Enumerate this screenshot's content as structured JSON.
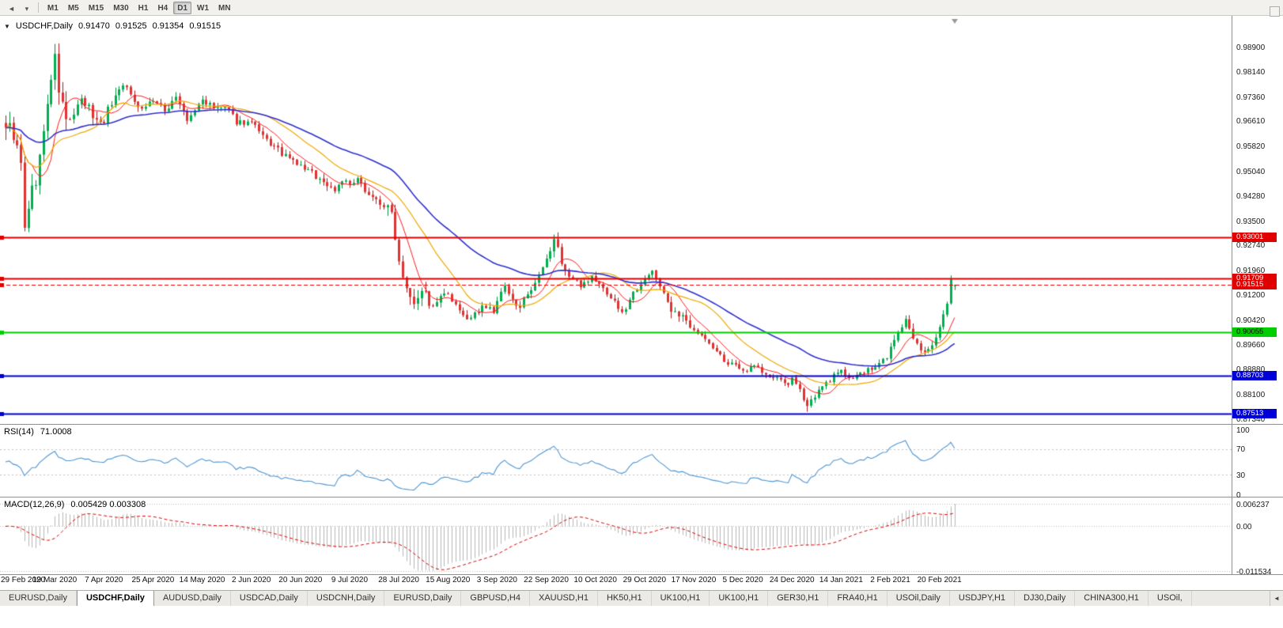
{
  "toolbar": {
    "timeframes": [
      "M1",
      "M5",
      "M15",
      "M30",
      "H1",
      "H4",
      "D1",
      "W1",
      "MN"
    ],
    "active_timeframe": "D1",
    "icons": [
      {
        "name": "scroll-left-icon",
        "glyph": "◄"
      },
      {
        "name": "chart-dropdown-icon",
        "glyph": "▾"
      }
    ]
  },
  "chart": {
    "collapse_icon": "▼",
    "symbol": "USDCHF,Daily",
    "open": "0.91470",
    "high": "0.91525",
    "low": "0.91354",
    "close": "0.91515"
  },
  "price_axis_ticks": [
    "0.98900",
    "0.98140",
    "0.97360",
    "0.96610",
    "0.95820",
    "0.95040",
    "0.94280",
    "0.93500",
    "0.92740",
    "0.91960",
    "0.91200",
    "0.90420",
    "0.89660",
    "0.88880",
    "0.88100",
    "0.87340"
  ],
  "rsi": {
    "name": "RSI(14)",
    "value": "71.0008",
    "axis": [
      "100",
      "70",
      "30",
      "0"
    ]
  },
  "macd": {
    "name": "MACD(12,26,9)",
    "values": "0.005429 0.003308",
    "axis": [
      "0.006237",
      "0.00",
      "-0.011534"
    ]
  },
  "dates": [
    "29 Feb 2020",
    "19 Mar 2020",
    "7 Apr 2020",
    "25 Apr 2020",
    "14 May 2020",
    "2 Jun 2020",
    "20 Jun 2020",
    "9 Jul 2020",
    "28 Jul 2020",
    "15 Aug 2020",
    "3 Sep 2020",
    "22 Sep 2020",
    "10 Oct 2020",
    "29 Oct 2020",
    "17 Nov 2020",
    "5 Dec 2020",
    "24 Dec 2020",
    "14 Jan 2021",
    "2 Feb 2021",
    "20 Feb 2021"
  ],
  "tab_scroll_glyph": "◄",
  "tabs": [
    {
      "label": "EURUSD,Daily",
      "active": false
    },
    {
      "label": "USDCHF,Daily",
      "active": true
    },
    {
      "label": "AUDUSD,Daily",
      "active": false
    },
    {
      "label": "USDCAD,Daily",
      "active": false
    },
    {
      "label": "USDCNH,Daily",
      "active": false
    },
    {
      "label": "EURUSD,Daily",
      "active": false
    },
    {
      "label": "GBPUSD,H4",
      "active": false
    },
    {
      "label": "XAUUSD,H1",
      "active": false
    },
    {
      "label": "HK50,H1",
      "active": false
    },
    {
      "label": "UK100,H1",
      "active": false
    },
    {
      "label": "UK100,H1",
      "active": false
    },
    {
      "label": "GER30,H1",
      "active": false
    },
    {
      "label": "FRA40,H1",
      "active": false
    },
    {
      "label": "USOil,Daily",
      "active": false
    },
    {
      "label": "USDJPY,H1",
      "active": false
    },
    {
      "label": "DJ30,Daily",
      "active": false
    },
    {
      "label": "CHINA300,H1",
      "active": false
    },
    {
      "label": "USOil,",
      "active": false
    }
  ],
  "colors": {
    "background": "#FFFFFF",
    "bull": "#00B050",
    "bull_border": "#008A3C",
    "bear": "#E03232",
    "bear_border": "#B01818",
    "ma_fast": "#FF1A1A",
    "ma_mid": "#EFA800",
    "ma_slow": "#3030CE",
    "rsi_line": "#4F96D2",
    "macd_bar": "#B6B6B6",
    "macd_signal": "#E00000",
    "dash_grid": "#BFBFBF",
    "panel_border": "#8F8F8F"
  },
  "chart_data": {
    "type": "candlestick",
    "symbol": "USDCHF",
    "timeframe": "Daily",
    "candle_count": 252,
    "noise_seed": 9,
    "last_candle": {
      "open": 0.9147,
      "high": 0.91525,
      "low": 0.91354,
      "close": 0.91515
    },
    "spike_high": {
      "index": 13,
      "price": 0.9901,
      "close": 0.987
    },
    "sep_spike": {
      "index": 145,
      "price": 0.9308
    },
    "low": {
      "index": 212,
      "price": 0.8757
    },
    "price_axis_range": {
      "top": 0.9988,
      "bottom": 0.862
    },
    "close_anchors": [
      [
        0,
        0.9655
      ],
      [
        2,
        0.962
      ],
      [
        4,
        0.952
      ],
      [
        5,
        0.932
      ],
      [
        6,
        0.94
      ],
      [
        8,
        0.948
      ],
      [
        10,
        0.962
      ],
      [
        12,
        0.98
      ],
      [
        13,
        0.987
      ],
      [
        14,
        0.976
      ],
      [
        16,
        0.966
      ],
      [
        18,
        0.968
      ],
      [
        20,
        0.972
      ],
      [
        22,
        0.97
      ],
      [
        24,
        0.966
      ],
      [
        26,
        0.9668
      ],
      [
        28,
        0.972
      ],
      [
        31,
        0.978
      ],
      [
        33,
        0.974
      ],
      [
        36,
        0.97
      ],
      [
        39,
        0.9728
      ],
      [
        42,
        0.969
      ],
      [
        45,
        0.974
      ],
      [
        48,
        0.966
      ],
      [
        52,
        0.9728
      ],
      [
        55,
        0.97
      ],
      [
        58,
        0.9703
      ],
      [
        61,
        0.966
      ],
      [
        65,
        0.9655
      ],
      [
        68,
        0.961
      ],
      [
        71,
        0.958
      ],
      [
        74,
        0.955
      ],
      [
        78,
        0.952
      ],
      [
        81,
        0.95
      ],
      [
        84,
        0.947
      ],
      [
        87,
        0.9447
      ],
      [
        89,
        0.948
      ],
      [
        91,
        0.946
      ],
      [
        93,
        0.9475
      ],
      [
        95,
        0.945
      ],
      [
        97,
        0.9423
      ],
      [
        100,
        0.9398
      ],
      [
        102,
        0.9373
      ],
      [
        103,
        0.931
      ],
      [
        104,
        0.9226
      ],
      [
        106,
        0.9152
      ],
      [
        108,
        0.9103
      ],
      [
        110,
        0.914
      ],
      [
        113,
        0.9078
      ],
      [
        116,
        0.9127
      ],
      [
        117,
        0.9115
      ],
      [
        120,
        0.9066
      ],
      [
        123,
        0.9041
      ],
      [
        126,
        0.909
      ],
      [
        129,
        0.9066
      ],
      [
        130,
        0.9103
      ],
      [
        132,
        0.9145
      ],
      [
        134,
        0.91
      ],
      [
        136,
        0.909
      ],
      [
        139,
        0.9127
      ],
      [
        141,
        0.9176
      ],
      [
        143,
        0.9226
      ],
      [
        145,
        0.9295
      ],
      [
        147,
        0.9226
      ],
      [
        149,
        0.9176
      ],
      [
        152,
        0.9152
      ],
      [
        155,
        0.9176
      ],
      [
        156,
        0.9164
      ],
      [
        159,
        0.9127
      ],
      [
        161,
        0.91
      ],
      [
        163,
        0.906
      ],
      [
        166,
        0.9127
      ],
      [
        169,
        0.9176
      ],
      [
        171,
        0.9188
      ],
      [
        173,
        0.9152
      ],
      [
        175,
        0.9103
      ],
      [
        176,
        0.906
      ],
      [
        178,
        0.9054
      ],
      [
        181,
        0.9029
      ],
      [
        182,
        0.9017
      ],
      [
        185,
        0.898
      ],
      [
        188,
        0.8943
      ],
      [
        191,
        0.8906
      ],
      [
        194,
        0.8894
      ],
      [
        195,
        0.8881
      ],
      [
        198,
        0.8906
      ],
      [
        201,
        0.8869
      ],
      [
        204,
        0.8857
      ],
      [
        207,
        0.8845
      ],
      [
        208,
        0.8857
      ],
      [
        210,
        0.882
      ],
      [
        212,
        0.878
      ],
      [
        214,
        0.8807
      ],
      [
        217,
        0.8845
      ],
      [
        219,
        0.8869
      ],
      [
        221,
        0.8881
      ],
      [
        224,
        0.8862
      ],
      [
        227,
        0.8881
      ],
      [
        230,
        0.8894
      ],
      [
        233,
        0.893
      ],
      [
        234,
        0.8955
      ],
      [
        236,
        0.9004
      ],
      [
        238,
        0.9041
      ],
      [
        240,
        0.898
      ],
      [
        242,
        0.8943
      ],
      [
        244,
        0.8955
      ],
      [
        246,
        0.8992
      ],
      [
        247,
        0.9017
      ],
      [
        248,
        0.9054
      ],
      [
        249,
        0.9103
      ],
      [
        250,
        0.9164
      ],
      [
        251,
        0.91515
      ]
    ],
    "levels": [
      {
        "price": 0.93001,
        "label": "0.93001",
        "color": "#E00000",
        "style": "solid",
        "width": 2,
        "text": "#FFFFFF"
      },
      {
        "price": 0.91709,
        "label": "0.91709",
        "color": "#E00000",
        "style": "solid",
        "width": 2,
        "text": "#FFFFFF"
      },
      {
        "price": 0.91515,
        "label": "0.91515",
        "color": "#E00000",
        "style": "dash",
        "width": 1,
        "text": "#FFFFFF"
      },
      {
        "price": 0.90055,
        "label": "0.90055",
        "color": "#00CE00",
        "style": "solid",
        "width": 2,
        "text": "#000000"
      },
      {
        "price": 0.88703,
        "label": "0.88703",
        "color": "#0000D8",
        "style": "solid",
        "width": 2,
        "text": "#FFFFFF"
      },
      {
        "price": 0.87513,
        "label": "0.87513",
        "color": "#0000D8",
        "style": "solid",
        "width": 2,
        "text": "#FFFFFF"
      }
    ],
    "moving_averages": [
      {
        "name": "fast",
        "period": 8,
        "color": "#FF1A1A"
      },
      {
        "name": "medium",
        "period": 20,
        "color": "#EFA800"
      },
      {
        "name": "slow",
        "period": 45,
        "color": "#3030CE"
      }
    ],
    "indicators": {
      "rsi": {
        "period": 14,
        "current": 71.0008,
        "levels": [
          70,
          30
        ]
      },
      "macd": {
        "fast": 12,
        "slow": 26,
        "signal": 9,
        "current_macd": 0.005429,
        "current_signal": 0.003308,
        "scale_max": 0.006237,
        "scale_min": -0.011534
      }
    },
    "x_tick_indices": [
      0,
      13,
      26,
      39,
      52,
      65,
      78,
      91,
      104,
      117,
      130,
      143,
      156,
      169,
      182,
      195,
      208,
      221,
      234,
      247
    ]
  }
}
